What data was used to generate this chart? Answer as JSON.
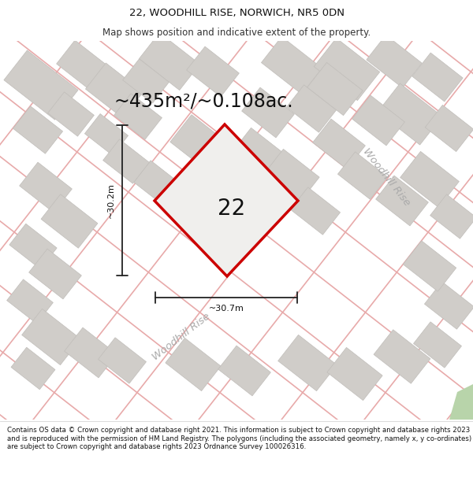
{
  "title": "22, WOODHILL RISE, NORWICH, NR5 0DN",
  "subtitle": "Map shows position and indicative extent of the property.",
  "area_label": "~435m²/~0.108ac.",
  "plot_number": "22",
  "dim_width": "~30.7m",
  "dim_height": "~30.2m",
  "road_label_right": "Woodhill Rise",
  "road_label_bottom": "Woodhill Rise",
  "footer": "Contains OS data © Crown copyright and database right 2021. This information is subject to Crown copyright and database rights 2023 and is reproduced with the permission of HM Land Registry. The polygons (including the associated geometry, namely x, y co-ordinates) are subject to Crown copyright and database rights 2023 Ordnance Survey 100026316.",
  "map_bg": "#edecea",
  "block_color": "#d0cdc9",
  "block_edge": "#c0bdb9",
  "road_line_color": "#e8aaaa",
  "plot_outline_color": "#cc0000",
  "plot_fill_color": "#f0efed",
  "dim_line_color": "#222222",
  "road_label_color": "#aaaaaa",
  "green_color": "#b8d4aa",
  "header_bg": "#ffffff",
  "footer_bg": "#ffffff",
  "title_fontsize": 9.5,
  "subtitle_fontsize": 8.5,
  "area_fontsize": 17,
  "number_fontsize": 20,
  "road_fontsize": 9.5,
  "footer_fontsize": 6.2,
  "dim_fontsize": 8
}
